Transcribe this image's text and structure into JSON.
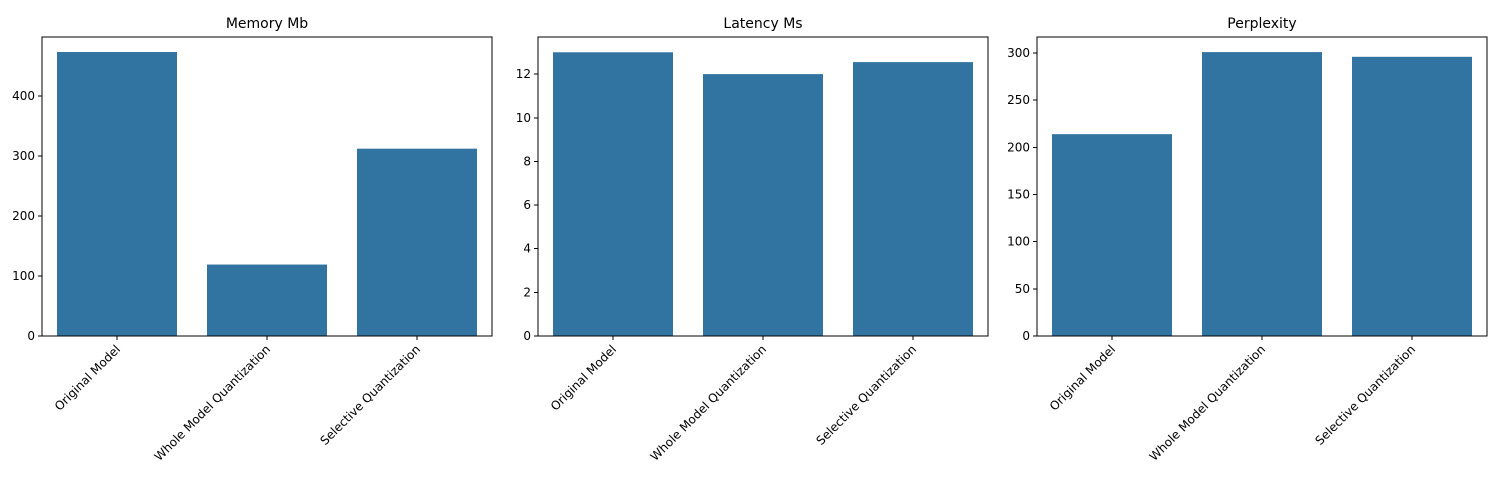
{
  "chart_data": [
    {
      "type": "bar",
      "title": "Memory Mb",
      "categories": [
        "Original Model",
        "Whole Model Quantization",
        "Selective Quantization"
      ],
      "values": [
        473,
        119,
        312
      ],
      "ylim": [
        0,
        498
      ],
      "yticks": [
        0,
        100,
        200,
        300,
        400
      ],
      "xlabel": "",
      "ylabel": "",
      "color": "#3274a1",
      "grid": false
    },
    {
      "type": "bar",
      "title": "Latency Ms",
      "categories": [
        "Original Model",
        "Whole Model Quantization",
        "Selective Quantization"
      ],
      "values": [
        13.0,
        12.0,
        12.55
      ],
      "ylim": [
        0,
        13.7
      ],
      "yticks": [
        0,
        2,
        4,
        6,
        8,
        10,
        12
      ],
      "xlabel": "",
      "ylabel": "",
      "color": "#3274a1",
      "grid": false
    },
    {
      "type": "bar",
      "title": "Perplexity",
      "categories": [
        "Original Model",
        "Whole Model Quantization",
        "Selective Quantization"
      ],
      "values": [
        214,
        301,
        296
      ],
      "ylim": [
        0,
        317
      ],
      "yticks": [
        0,
        50,
        100,
        150,
        200,
        250,
        300
      ],
      "xlabel": "",
      "ylabel": "",
      "color": "#3274a1",
      "grid": false
    }
  ]
}
